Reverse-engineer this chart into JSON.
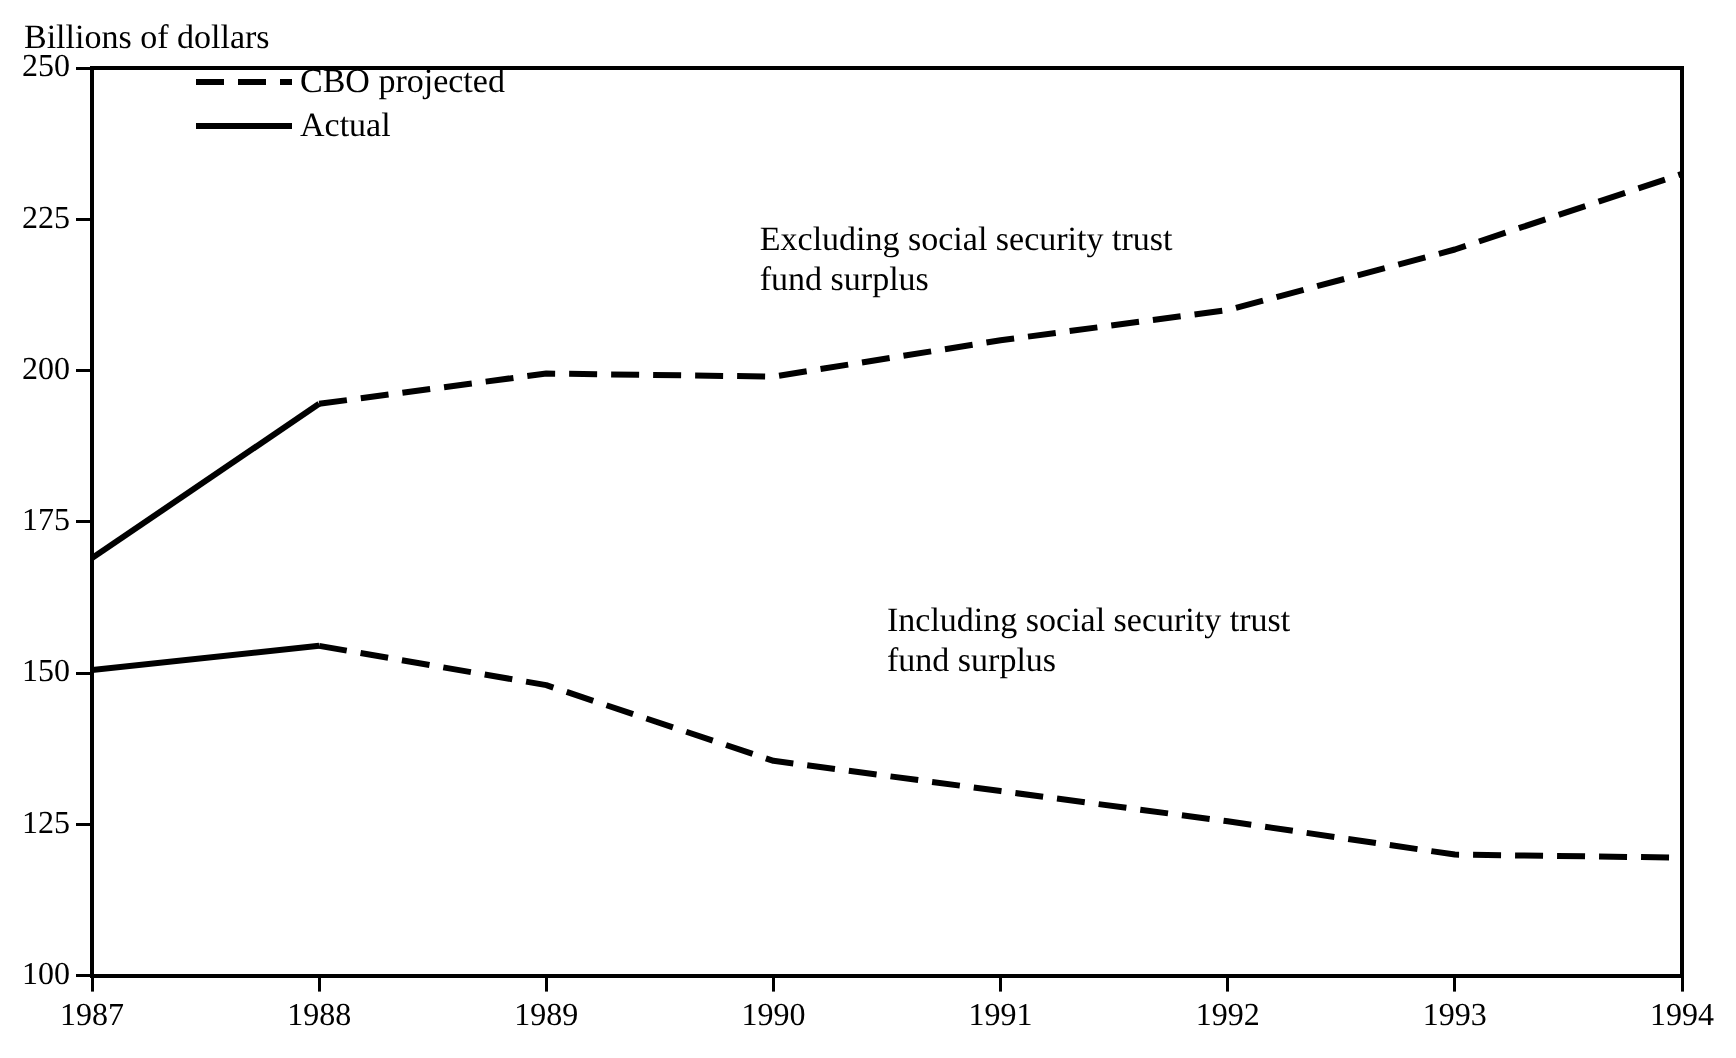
{
  "chart_data": {
    "type": "line",
    "ylabel": "Billions of dollars",
    "xlim": [
      1987,
      1994
    ],
    "xticks": [
      1987,
      1988,
      1989,
      1990,
      1991,
      1992,
      1993,
      1994
    ],
    "ylim": [
      100,
      250
    ],
    "yticks": [
      100,
      125,
      150,
      175,
      200,
      225,
      250
    ],
    "grid": false,
    "legend": "top left",
    "marker": "none",
    "series": [
      {
        "name": "CBO projected",
        "color": "#000000",
        "line_style": "dashed",
        "x": [
          1988,
          1989,
          1990,
          1991,
          1992,
          1993,
          1994
        ],
        "values": [
          194.5,
          199.5,
          199,
          205,
          210,
          220,
          232.5
        ]
      },
      {
        "name": "Actual",
        "color": "#000000",
        "line_style": "solid",
        "x": [
          1987,
          1988
        ],
        "values": [
          169,
          194.5
        ]
      },
      {
        "color": "#000000",
        "line_style": "dashed",
        "x": [
          1988,
          1989,
          1990,
          1991,
          1992,
          1993,
          1994
        ],
        "values": [
          154.5,
          148,
          135.5,
          130.5,
          125.5,
          120,
          119.5
        ]
      },
      {
        "color": "#000000",
        "line_style": "solid",
        "x": [
          1987,
          1988
        ],
        "values": [
          150.5,
          154.5
        ]
      }
    ],
    "annotations": [
      "Excluding social security trust fund surplus",
      "Including social security trust fund surplus"
    ]
  }
}
